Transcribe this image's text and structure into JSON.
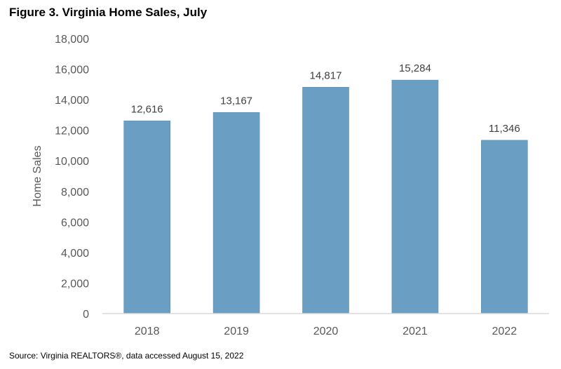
{
  "chart_data": {
    "type": "bar",
    "title": "Figure 3. Virginia Home Sales, July",
    "categories": [
      "2018",
      "2019",
      "2020",
      "2021",
      "2022"
    ],
    "values": [
      12616,
      13167,
      14817,
      15284,
      11346
    ],
    "data_labels": [
      "12,616",
      "13,167",
      "14,817",
      "15,284",
      "11,346"
    ],
    "xlabel": "",
    "ylabel": "Home Sales",
    "ylim": [
      0,
      18000
    ],
    "yticks": [
      0,
      2000,
      4000,
      6000,
      8000,
      10000,
      12000,
      14000,
      16000,
      18000
    ],
    "ytick_labels": [
      "0",
      "2,000",
      "4,000",
      "6,000",
      "8,000",
      "10,000",
      "12,000",
      "14,000",
      "16,000",
      "18,000"
    ],
    "grid": false,
    "bar_color": "#6a9ec2",
    "source": "Source: Virginia REALTORS®, data accessed August 15, 2022"
  }
}
